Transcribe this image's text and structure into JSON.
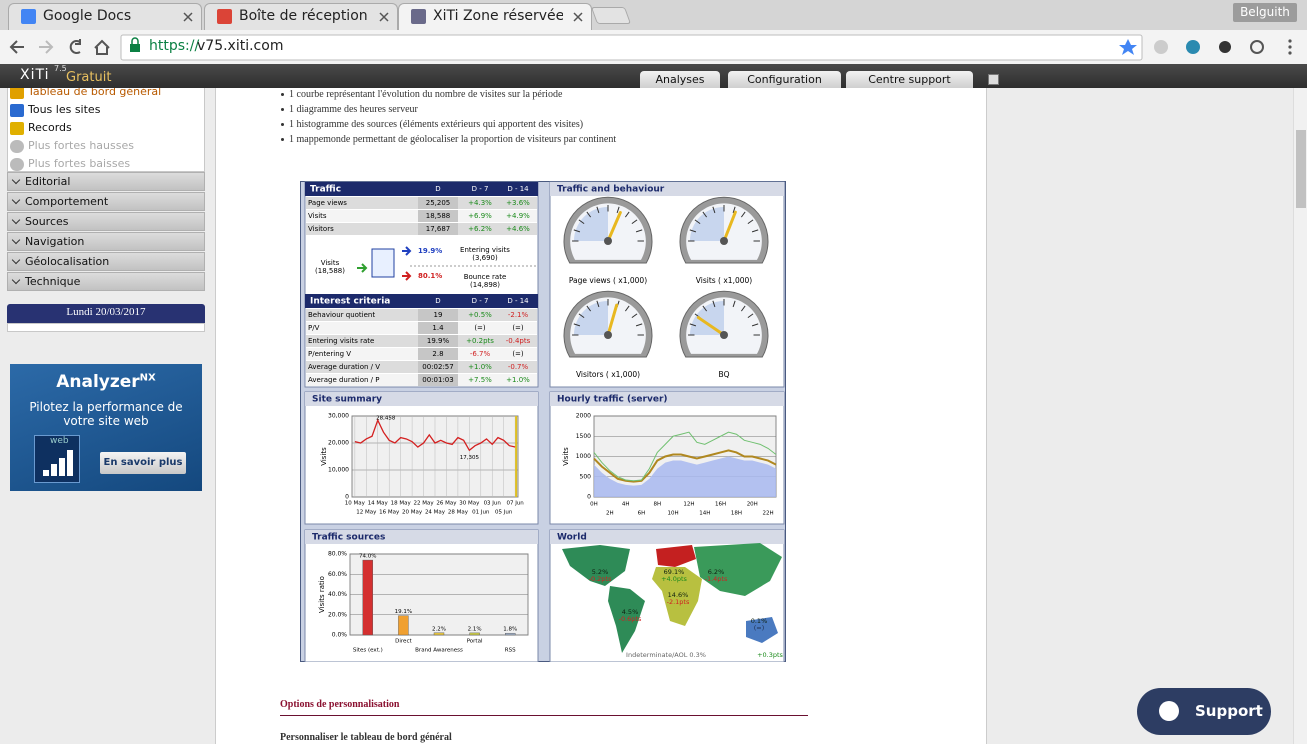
{
  "browser": {
    "tabs": [
      "Google Docs",
      "Boîte de réception",
      "XiTi Zone réservée"
    ],
    "profile": "Belguith",
    "url_scheme": "https://",
    "url_host": "v75.xiti.com"
  },
  "header": {
    "logo": "XiTi",
    "version": "7.5",
    "plan": "Gratuit",
    "nav": [
      "Analyses",
      "Configuration",
      "Centre support"
    ]
  },
  "sidebar": {
    "items": [
      "Tableau de bord général",
      "Tous les sites",
      "Records",
      "Plus fortes hausses",
      "Plus fortes baisses"
    ],
    "sections": [
      "Editorial",
      "Comportement",
      "Sources",
      "Navigation",
      "Géolocalisation",
      "Technique"
    ],
    "date": "Lundi 20/03/2017"
  },
  "ad": {
    "title": "Analyzer",
    "title_sup": "NX",
    "text": "Pilotez la performance de votre site web",
    "button": "En savoir plus",
    "icon_label": "web"
  },
  "content": {
    "bullets": [
      "1 courbe représentant l'évolution du nombre de visites sur la période",
      "1 diagramme des heures serveur",
      "1 histogramme des sources (éléments extérieurs qui apportent des visites)",
      "1 mappemonde permettant de géolocaliser la proportion de visiteurs par continent"
    ],
    "section_title": "Options de personnalisation",
    "subsection_title": "Personnaliser le tableau de bord général"
  },
  "dashboard": {
    "traffic": {
      "title": "Traffic",
      "columns": [
        "D",
        "D - 7",
        "D - 14"
      ],
      "rows": [
        {
          "label": "Page views",
          "values": [
            "25,205",
            "+4.3%",
            "+3.6%"
          ]
        },
        {
          "label": "Visits",
          "values": [
            "18,588",
            "+6.9%",
            "+4.9%"
          ]
        },
        {
          "label": "Visitors",
          "values": [
            "17,687",
            "+6.2%",
            "+4.6%"
          ]
        }
      ]
    },
    "visits_flow": {
      "visits": "Visits",
      "visits_count": "(18,588)",
      "entering_rate": "19.9%",
      "entering_label": "Entering visits",
      "entering_count": "(3,690)",
      "bounce_rate": "80.1%",
      "bounce_label": "Bounce rate",
      "bounce_count": "(14,898)"
    },
    "interest": {
      "title": "Interest criteria",
      "columns": [
        "D",
        "D - 7",
        "D - 14"
      ],
      "rows": [
        {
          "label": "Behaviour quotient",
          "values": [
            "19",
            "+0.5%",
            "-2.1%"
          ]
        },
        {
          "label": "P/V",
          "values": [
            "1.4",
            "(=)",
            "(=)"
          ]
        },
        {
          "label": "Entering visits rate",
          "values": [
            "19.9%",
            "+0.2pts",
            "-0.4pts"
          ]
        },
        {
          "label": "P/entering V",
          "values": [
            "2.8",
            "-6.7%",
            "(=)"
          ]
        },
        {
          "label": "Average duration / V",
          "values": [
            "00:02:57",
            "+1.0%",
            "-0.7%"
          ]
        },
        {
          "label": "Average duration / P",
          "values": [
            "00:01:03",
            "+7.5%",
            "+1.0%"
          ]
        }
      ]
    },
    "behaviour": {
      "title": "Traffic and behaviour",
      "gauges": [
        {
          "label": "Page views ( x1,000)",
          "value": 25.205,
          "range": [
            0,
            40
          ]
        },
        {
          "label": "Visits ( x1,000)",
          "value": 18.588,
          "range": [
            0,
            30
          ]
        },
        {
          "label": "Visitors ( x1,000)",
          "value": 17.687,
          "range": [
            0,
            30
          ]
        },
        {
          "label": "BQ",
          "value": 19,
          "range": [
            0,
            100
          ]
        }
      ]
    },
    "site_summary": {
      "type": "line",
      "title": "Site summary",
      "y_label": "Visits",
      "color": "#d42020",
      "categories": [
        "10 May",
        null,
        "12 May",
        null,
        "14 May",
        null,
        "16 May",
        null,
        "18 May",
        null,
        "20 May",
        null,
        "22 May",
        null,
        "24 May",
        null,
        "26 May",
        null,
        "28 May",
        null,
        "30 May",
        null,
        "01 Jun",
        null,
        "03 Jun",
        null,
        "05 Jun",
        null,
        "07 Jun"
      ],
      "values": [
        20500,
        20000,
        21500,
        22500,
        28458,
        24000,
        21000,
        20000,
        22000,
        21500,
        20500,
        18500,
        20000,
        23000,
        20000,
        21000,
        20000,
        19500,
        22000,
        21000,
        17305,
        19000,
        20000,
        21500,
        19500,
        22000,
        21000,
        19000,
        18500
      ],
      "annotations": [
        "28,458",
        "17,305"
      ],
      "ylim": [
        0,
        30000
      ],
      "yticks": [
        0,
        {
          "value": 10000,
          "label": "10,000"
        },
        {
          "value": 20000,
          "label": "20,000"
        },
        {
          "value": 30000,
          "label": "30,000"
        }
      ]
    },
    "hourly": {
      "type": "line",
      "title": "Hourly traffic (server)",
      "y_label": "Visits",
      "categories": [
        "0H",
        null,
        "2H",
        null,
        "4H",
        null,
        "6H",
        null,
        "8H",
        null,
        "10H",
        null,
        "12H",
        null,
        "14H",
        null,
        "16H",
        null,
        "18H",
        null,
        "20H",
        null,
        "22H",
        null
      ],
      "series": [
        {
          "color": "#a8b8f0",
          "values": [
            800,
            600,
            450,
            350,
            300,
            280,
            300,
            450,
            700,
            850,
            900,
            900,
            850,
            800,
            850,
            900,
            950,
            1000,
            950,
            900,
            900,
            850,
            800,
            700
          ]
        },
        {
          "color": "#b08820",
          "values": [
            950,
            750,
            600,
            450,
            400,
            380,
            400,
            600,
            900,
            1000,
            1050,
            1050,
            1000,
            950,
            1000,
            1050,
            1100,
            1150,
            1100,
            1000,
            1000,
            950,
            900,
            800
          ]
        },
        {
          "color": "#70c070",
          "values": [
            1100,
            850,
            650,
            500,
            420,
            400,
            420,
            700,
            1100,
            1300,
            1500,
            1550,
            1600,
            1350,
            1300,
            1400,
            1500,
            1600,
            1550,
            1400,
            1350,
            1300,
            1200,
            1050
          ]
        }
      ],
      "ylim": [
        0,
        2000
      ],
      "yticks": [
        0,
        500,
        1000,
        1500,
        2000
      ]
    },
    "sources": {
      "type": "bar",
      "title": "Traffic sources",
      "y_label": "Visits ratio",
      "categories": [
        "Sites (ext.)",
        "Direct",
        "Brand Awareness",
        "Portal",
        "RSS"
      ],
      "values": [
        74.0,
        19.1,
        2.2,
        2.1,
        1.8
      ],
      "value_labels": [
        "74.0%",
        "19.1%",
        "2.2%",
        "2.1%",
        "1.8%"
      ],
      "colors": [
        "#d43030",
        "#f0a030",
        "#e0c040",
        "#c8c848",
        "#a0b0c8"
      ],
      "ylim": [
        0,
        80
      ],
      "yticks": [
        {
          "value": 0,
          "label": "0.0%"
        },
        {
          "value": 20,
          "label": "20.0%"
        },
        {
          "value": 40,
          "label": "40.0%"
        },
        {
          "value": 60,
          "label": "60.0%"
        },
        {
          "value": 80,
          "label": "80.0%"
        }
      ]
    },
    "world": {
      "title": "World",
      "regions": [
        {
          "share": "5.2%",
          "change": "-0.2pts"
        },
        {
          "share": "69.1%",
          "change": "+4.0pts"
        },
        {
          "share": "6.2%",
          "change": "-1.4pts"
        },
        {
          "share": "14.6%",
          "change": "-2.1pts"
        },
        {
          "share": "4.5%",
          "change": "-0.6pts"
        },
        {
          "share": "0.1%",
          "change": "(=)"
        }
      ],
      "indeterminate": "Indeterminate/AOL 0.3%",
      "indeterminate_change": "+0.3pts"
    }
  },
  "support": "Support"
}
